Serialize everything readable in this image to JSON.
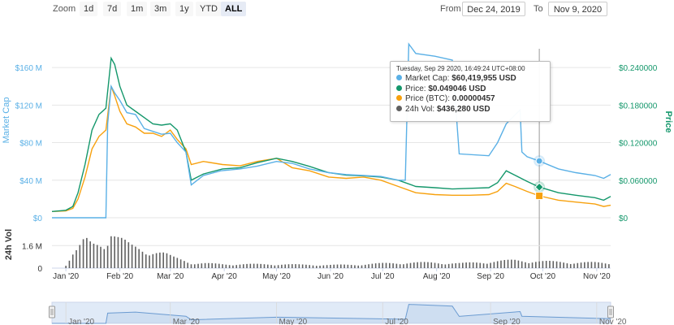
{
  "toolbar": {
    "zoom_label": "Zoom",
    "zoom_buttons": [
      "1d",
      "7d",
      "1m",
      "3m",
      "1y",
      "YTD",
      "ALL"
    ],
    "active_zoom": "ALL",
    "from_label": "From",
    "from_value": "Dec 24, 2019",
    "to_label": "To",
    "to_value": "Nov 9, 2020"
  },
  "tooltip": {
    "header": "Tuesday, Sep 29 2020, 16:49:24 UTC+08:00",
    "rows": [
      {
        "label": "Market Cap:",
        "value": "$60,419,955 USD",
        "color": "#5ab0e6"
      },
      {
        "label": "Price:",
        "value": "$0.049046 USD",
        "color": "#14976b"
      },
      {
        "label": "Price (BTC):",
        "value": "0.00000457",
        "color": "#f7a10e"
      },
      {
        "label": "24h Vol:",
        "value": "$436,280 USD",
        "color": "#606060"
      }
    ]
  },
  "colors": {
    "market_cap": "#5ab0e6",
    "price": "#14976b",
    "price_btc": "#f7a10e",
    "volume": "#606060",
    "navigator_fill": "#c6d8f0",
    "navigator_line": "#6b9bd1"
  },
  "chart_data": [
    {
      "type": "line",
      "x_label_dates": [
        "Jan '20",
        "Feb '20",
        "Mar '20",
        "Apr '20",
        "May '20",
        "Jun '20",
        "Jul '20",
        "Aug '20",
        "Sep '20",
        "Oct '20",
        "Nov '20"
      ],
      "left_axis": {
        "title": "Market Cap",
        "ticks": [
          "$0",
          "$40 M",
          "$80 M",
          "$120 M",
          "$160 M"
        ],
        "range": [
          0,
          180000000
        ]
      },
      "right_axis": {
        "title": "Price",
        "ticks": [
          "$0",
          "$0.060000",
          "$0.120000",
          "$0.180000",
          "$0.240000"
        ],
        "range": [
          0,
          0.27
        ]
      },
      "x_range": [
        "2019-12-24",
        "2020-11-09"
      ],
      "series": [
        {
          "name": "Market Cap",
          "axis": "left",
          "points": [
            [
              "2019-12-24",
              0
            ],
            [
              "2020-01-10",
              0
            ],
            [
              "2020-01-24",
              0
            ],
            [
              "2020-01-25",
              100000000
            ],
            [
              "2020-01-27",
              140000000
            ],
            [
              "2020-01-29",
              133000000
            ],
            [
              "2020-02-01",
              125000000
            ],
            [
              "2020-02-05",
              112000000
            ],
            [
              "2020-02-10",
              110000000
            ],
            [
              "2020-02-15",
              95000000
            ],
            [
              "2020-02-20",
              92000000
            ],
            [
              "2020-02-25",
              89000000
            ],
            [
              "2020-03-01",
              90000000
            ],
            [
              "2020-03-05",
              80000000
            ],
            [
              "2020-03-10",
              70000000
            ],
            [
              "2020-03-13",
              35000000
            ],
            [
              "2020-03-20",
              45000000
            ],
            [
              "2020-03-30",
              50000000
            ],
            [
              "2020-04-10",
              52000000
            ],
            [
              "2020-04-20",
              55000000
            ],
            [
              "2020-05-01",
              60000000
            ],
            [
              "2020-05-10",
              58000000
            ],
            [
              "2020-05-20",
              52000000
            ],
            [
              "2020-05-31",
              48000000
            ],
            [
              "2020-06-10",
              46000000
            ],
            [
              "2020-06-20",
              45000000
            ],
            [
              "2020-06-30",
              44000000
            ],
            [
              "2020-07-10",
              40000000
            ],
            [
              "2020-07-14",
              40000000
            ],
            [
              "2020-07-16",
              185000000
            ],
            [
              "2020-07-20",
              175000000
            ],
            [
              "2020-07-31",
              172000000
            ],
            [
              "2020-08-10",
              168000000
            ],
            [
              "2020-08-14",
              68000000
            ],
            [
              "2020-08-31",
              66000000
            ],
            [
              "2020-09-05",
              80000000
            ],
            [
              "2020-09-10",
              100000000
            ],
            [
              "2020-09-18",
              115000000
            ],
            [
              "2020-09-19",
              70000000
            ],
            [
              "2020-09-22",
              65000000
            ],
            [
              "2020-09-29",
              60419955
            ],
            [
              "2020-10-10",
              52000000
            ],
            [
              "2020-10-20",
              48000000
            ],
            [
              "2020-10-31",
              45000000
            ],
            [
              "2020-11-05",
              42000000
            ],
            [
              "2020-11-09",
              46000000
            ]
          ]
        },
        {
          "name": "Price",
          "axis": "right",
          "points": [
            [
              "2019-12-24",
              0.01
            ],
            [
              "2020-01-01",
              0.012
            ],
            [
              "2020-01-05",
              0.018
            ],
            [
              "2020-01-08",
              0.04
            ],
            [
              "2020-01-12",
              0.085
            ],
            [
              "2020-01-16",
              0.14
            ],
            [
              "2020-01-20",
              0.165
            ],
            [
              "2020-01-24",
              0.175
            ],
            [
              "2020-01-27",
              0.255
            ],
            [
              "2020-01-29",
              0.245
            ],
            [
              "2020-02-01",
              0.21
            ],
            [
              "2020-02-05",
              0.18
            ],
            [
              "2020-02-10",
              0.17
            ],
            [
              "2020-02-15",
              0.16
            ],
            [
              "2020-02-20",
              0.15
            ],
            [
              "2020-02-25",
              0.148
            ],
            [
              "2020-03-01",
              0.15
            ],
            [
              "2020-03-05",
              0.14
            ],
            [
              "2020-03-10",
              0.105
            ],
            [
              "2020-03-13",
              0.06
            ],
            [
              "2020-03-20",
              0.07
            ],
            [
              "2020-03-31",
              0.078
            ],
            [
              "2020-04-10",
              0.08
            ],
            [
              "2020-04-20",
              0.088
            ],
            [
              "2020-05-01",
              0.095
            ],
            [
              "2020-05-10",
              0.09
            ],
            [
              "2020-05-20",
              0.082
            ],
            [
              "2020-05-31",
              0.072
            ],
            [
              "2020-06-10",
              0.068
            ],
            [
              "2020-06-20",
              0.067
            ],
            [
              "2020-06-30",
              0.065
            ],
            [
              "2020-07-10",
              0.06
            ],
            [
              "2020-07-20",
              0.05
            ],
            [
              "2020-07-31",
              0.048
            ],
            [
              "2020-08-10",
              0.046
            ],
            [
              "2020-08-20",
              0.047
            ],
            [
              "2020-08-31",
              0.048
            ],
            [
              "2020-09-05",
              0.056
            ],
            [
              "2020-09-10",
              0.075
            ],
            [
              "2020-09-15",
              0.068
            ],
            [
              "2020-09-22",
              0.058
            ],
            [
              "2020-09-29",
              0.049046
            ],
            [
              "2020-10-10",
              0.04
            ],
            [
              "2020-10-20",
              0.036
            ],
            [
              "2020-10-31",
              0.032
            ],
            [
              "2020-11-05",
              0.028
            ],
            [
              "2020-11-09",
              0.034
            ]
          ]
        },
        {
          "name": "Price (BTC)",
          "axis": "right",
          "points": [
            [
              "2019-12-24",
              0.01
            ],
            [
              "2020-01-01",
              0.011
            ],
            [
              "2020-01-05",
              0.015
            ],
            [
              "2020-01-08",
              0.03
            ],
            [
              "2020-01-12",
              0.065
            ],
            [
              "2020-01-16",
              0.11
            ],
            [
              "2020-01-20",
              0.13
            ],
            [
              "2020-01-24",
              0.14
            ],
            [
              "2020-01-27",
              0.21
            ],
            [
              "2020-01-29",
              0.195
            ],
            [
              "2020-02-01",
              0.17
            ],
            [
              "2020-02-05",
              0.15
            ],
            [
              "2020-02-10",
              0.145
            ],
            [
              "2020-02-15",
              0.135
            ],
            [
              "2020-02-20",
              0.135
            ],
            [
              "2020-02-25",
              0.13
            ],
            [
              "2020-03-01",
              0.14
            ],
            [
              "2020-03-05",
              0.125
            ],
            [
              "2020-03-10",
              0.11
            ],
            [
              "2020-03-13",
              0.085
            ],
            [
              "2020-03-20",
              0.09
            ],
            [
              "2020-03-31",
              0.085
            ],
            [
              "2020-04-10",
              0.083
            ],
            [
              "2020-04-20",
              0.09
            ],
            [
              "2020-05-01",
              0.095
            ],
            [
              "2020-05-10",
              0.08
            ],
            [
              "2020-05-20",
              0.075
            ],
            [
              "2020-05-31",
              0.065
            ],
            [
              "2020-06-10",
              0.063
            ],
            [
              "2020-06-20",
              0.065
            ],
            [
              "2020-06-30",
              0.06
            ],
            [
              "2020-07-10",
              0.05
            ],
            [
              "2020-07-20",
              0.04
            ],
            [
              "2020-07-31",
              0.037
            ],
            [
              "2020-08-10",
              0.036
            ],
            [
              "2020-08-20",
              0.036
            ],
            [
              "2020-08-31",
              0.037
            ],
            [
              "2020-09-05",
              0.042
            ],
            [
              "2020-09-10",
              0.055
            ],
            [
              "2020-09-15",
              0.05
            ],
            [
              "2020-09-22",
              0.042
            ],
            [
              "2020-09-29",
              0.035
            ],
            [
              "2020-10-10",
              0.028
            ],
            [
              "2020-10-20",
              0.025
            ],
            [
              "2020-10-31",
              0.022
            ],
            [
              "2020-11-05",
              0.018
            ],
            [
              "2020-11-09",
              0.02
            ]
          ]
        }
      ]
    },
    {
      "type": "bar",
      "title": "24h Vol",
      "ticks": [
        "0",
        "1.6 M"
      ],
      "range": [
        0,
        2600000
      ],
      "series": [
        {
          "name": "24h Vol",
          "points": [
            [
              "2020-01-01",
              200000
            ],
            [
              "2020-01-05",
              900000
            ],
            [
              "2020-01-08",
              1200000
            ],
            [
              "2020-01-12",
              1800000
            ],
            [
              "2020-01-16",
              1500000
            ],
            [
              "2020-01-20",
              1600000
            ],
            [
              "2020-01-24",
              1700000
            ],
            [
              "2020-01-27",
              2400000
            ],
            [
              "2020-01-30",
              2000000
            ],
            [
              "2020-02-03",
              1700000
            ],
            [
              "2020-02-07",
              1400000
            ],
            [
              "2020-02-11",
              1300000
            ],
            [
              "2020-02-15",
              1200000
            ],
            [
              "2020-02-19",
              1100000
            ],
            [
              "2020-02-23",
              1000000
            ],
            [
              "2020-02-27",
              900000
            ],
            [
              "2020-03-02",
              700000
            ],
            [
              "2020-03-06",
              600000
            ],
            [
              "2020-03-10",
              500000
            ],
            [
              "2020-03-14",
              300000
            ],
            [
              "2020-03-21",
              300000
            ],
            [
              "2020-04-01",
              250000
            ],
            [
              "2020-04-15",
              250000
            ],
            [
              "2020-05-01",
              250000
            ],
            [
              "2020-05-15",
              220000
            ],
            [
              "2020-06-01",
              200000
            ],
            [
              "2020-06-15",
              220000
            ],
            [
              "2020-07-01",
              300000
            ],
            [
              "2020-07-15",
              350000
            ],
            [
              "2020-08-01",
              350000
            ],
            [
              "2020-08-15",
              300000
            ],
            [
              "2020-09-01",
              420000
            ],
            [
              "2020-09-15",
              500000
            ],
            [
              "2020-09-29",
              436280
            ],
            [
              "2020-10-15",
              380000
            ],
            [
              "2020-11-01",
              350000
            ],
            [
              "2020-11-09",
              300000
            ]
          ]
        }
      ]
    },
    {
      "type": "area",
      "title": "Navigator",
      "x_labels": [
        "Jan '20",
        "Mar '20",
        "May '20",
        "Jul '20",
        "Sep '20",
        "Nov '20"
      ],
      "series": [
        {
          "name": "Market Cap",
          "points": [
            [
              "2019-12-24",
              0
            ],
            [
              "2020-01-24",
              0
            ],
            [
              "2020-01-25",
              100000000
            ],
            [
              "2020-02-10",
              110000000
            ],
            [
              "2020-03-10",
              70000000
            ],
            [
              "2020-03-13",
              35000000
            ],
            [
              "2020-05-01",
              60000000
            ],
            [
              "2020-07-14",
              40000000
            ],
            [
              "2020-07-16",
              185000000
            ],
            [
              "2020-08-10",
              168000000
            ],
            [
              "2020-08-14",
              68000000
            ],
            [
              "2020-09-18",
              115000000
            ],
            [
              "2020-09-19",
              70000000
            ],
            [
              "2020-11-09",
              46000000
            ]
          ]
        }
      ]
    }
  ]
}
